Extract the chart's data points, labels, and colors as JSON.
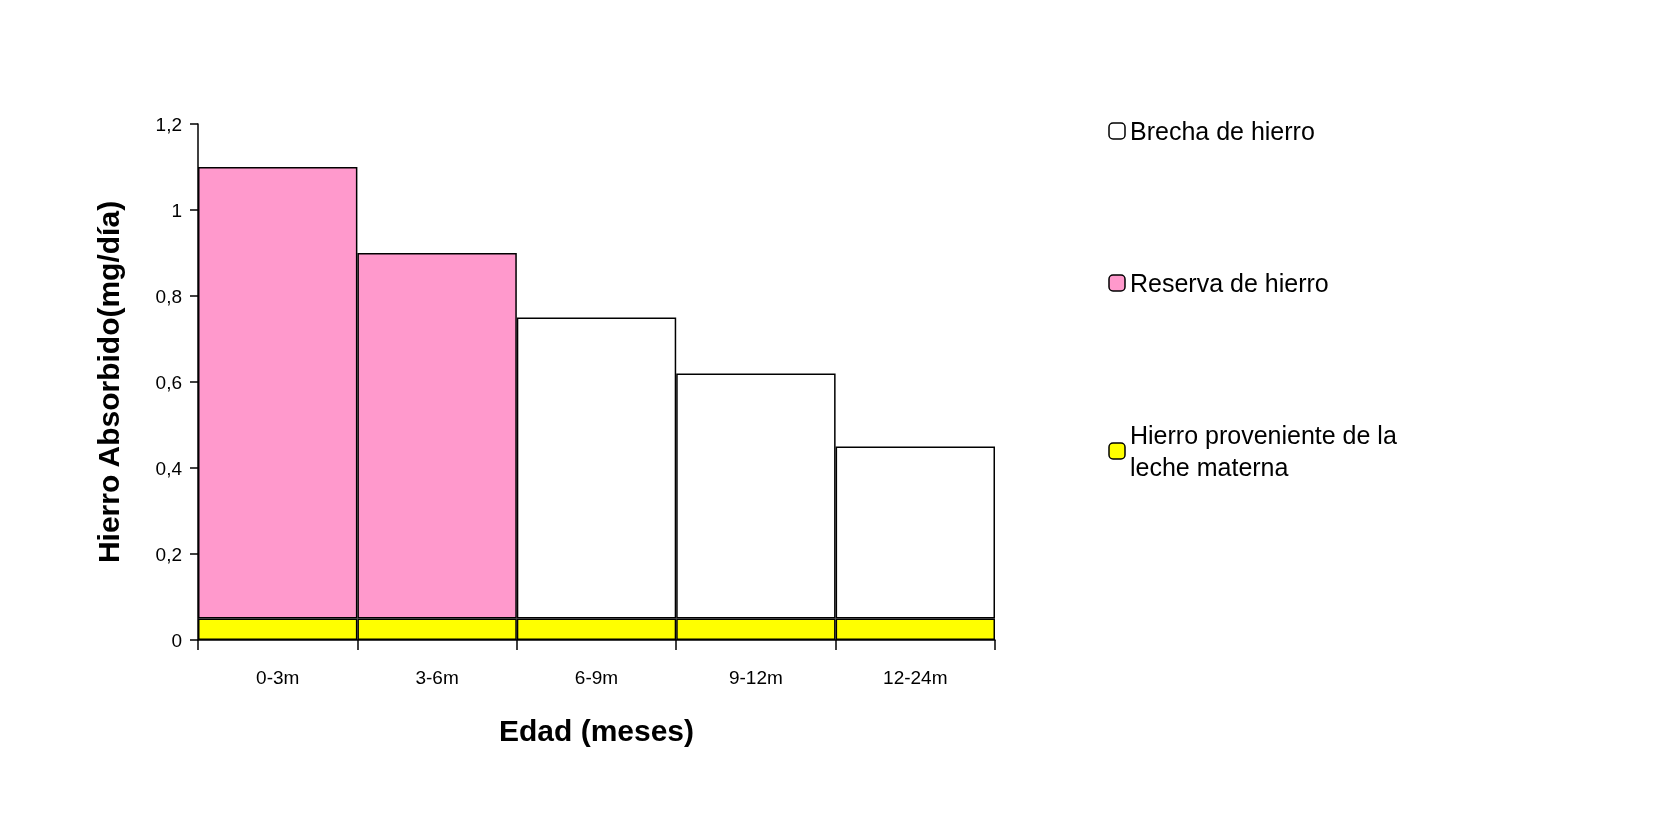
{
  "chart_data": {
    "type": "bar",
    "stacked": true,
    "categories": [
      "0-3m",
      "3-6m",
      "6-9m",
      "9-12m",
      "12-24m"
    ],
    "xlabel": "Edad (meses)",
    "ylabel": "Hierro Absorbido(mg/día)",
    "series": [
      {
        "name": "Hierro proveniente de la leche materna",
        "color": "#ffff00",
        "values": [
          0.05,
          0.05,
          0.05,
          0.05,
          0.05
        ]
      },
      {
        "name": "Reserva de hierro",
        "color": "#ff99cc",
        "values": [
          1.05,
          0.85,
          null,
          null,
          null
        ]
      },
      {
        "name": "Brecha de hierro",
        "color": "#ffffff",
        "values": [
          null,
          null,
          0.7,
          0.57,
          0.4
        ]
      }
    ],
    "ylim": [
      0,
      1.2
    ],
    "yticks": [
      0,
      {
        "value": 0.2,
        "label": "0,2"
      },
      {
        "value": 0.4,
        "label": "0,4"
      },
      {
        "value": 0.6,
        "label": "0,6"
      },
      {
        "value": 0.8,
        "label": "0,8"
      },
      1,
      {
        "value": 1.2,
        "label": "1,2"
      }
    ],
    "grid": false,
    "legend": "right"
  }
}
